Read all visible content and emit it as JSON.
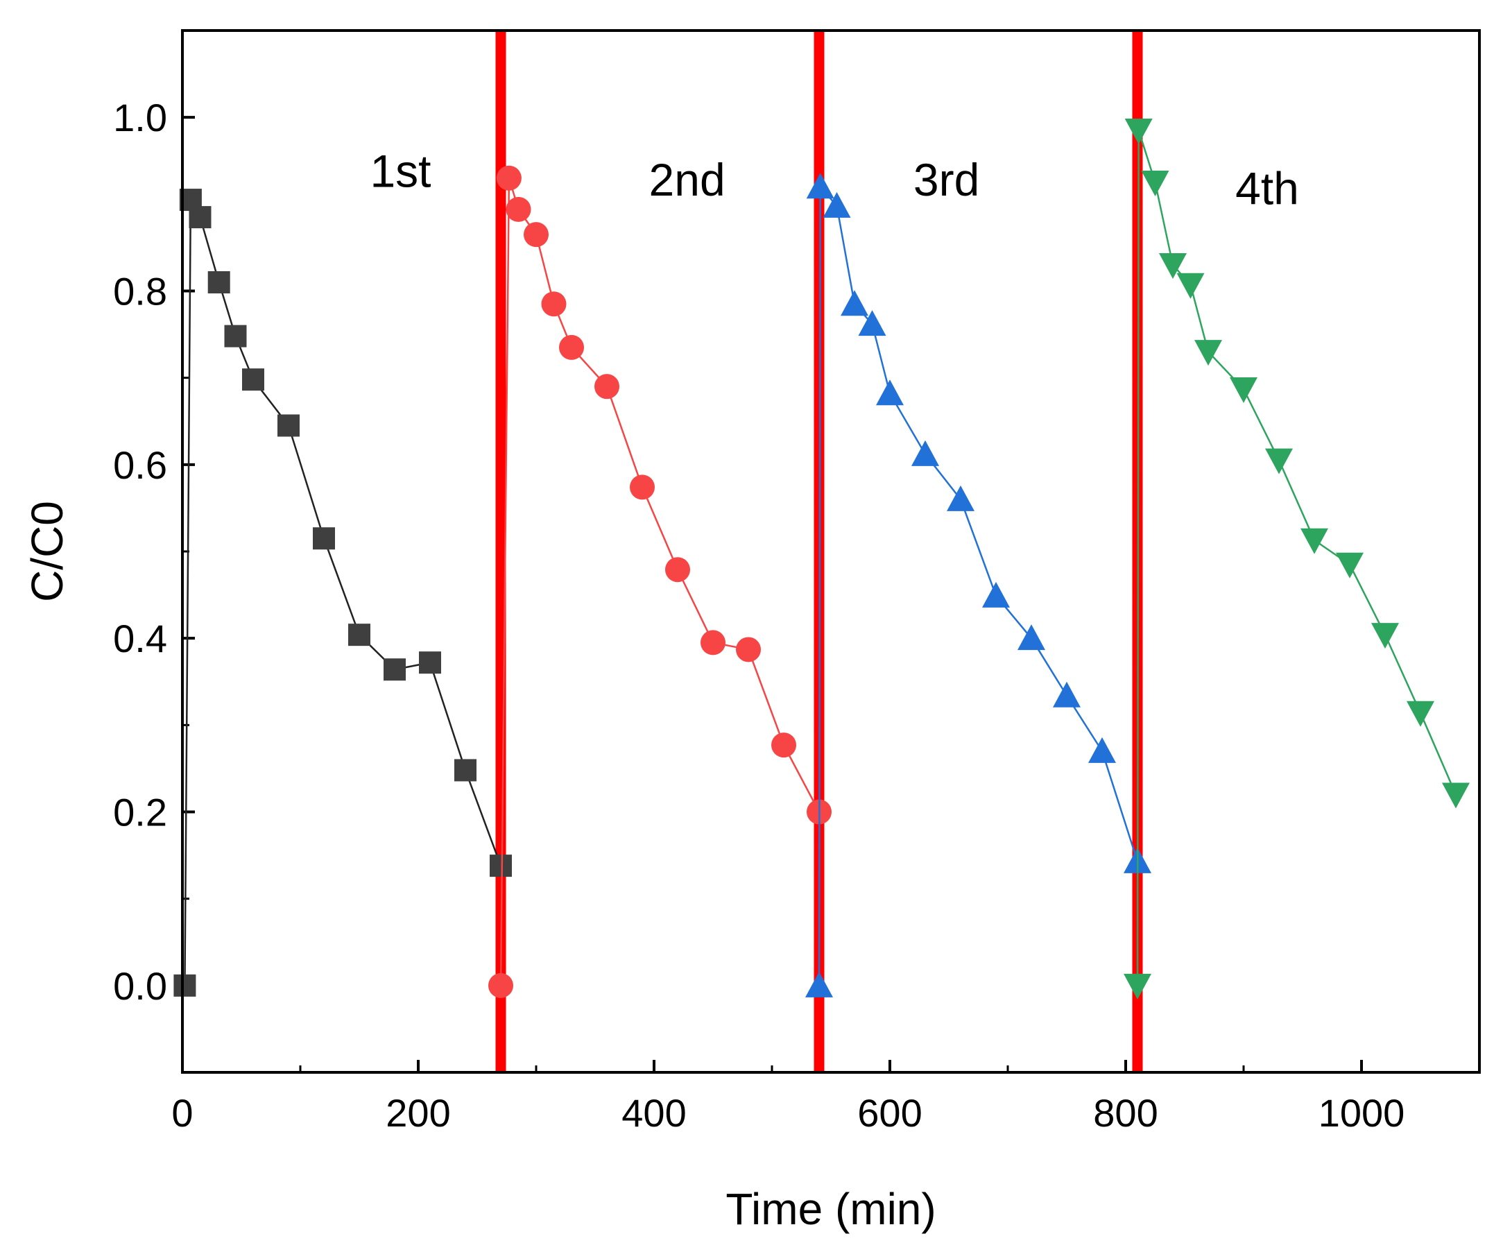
{
  "chart_data": {
    "type": "scatter",
    "xlabel": "Time (min)",
    "ylabel": "C/C0",
    "xlim": [
      0,
      1100
    ],
    "ylim": [
      -0.1,
      1.1
    ],
    "x_ticks": [
      0,
      200,
      400,
      600,
      800,
      1000
    ],
    "x_tick_labels": [
      "0",
      "200",
      "400",
      "600",
      "800",
      "1000"
    ],
    "y_ticks": [
      0.0,
      0.2,
      0.4,
      0.6,
      0.8,
      1.0
    ],
    "y_tick_labels": [
      "0.0",
      "0.2",
      "0.4",
      "0.6",
      "0.8",
      "1.0"
    ],
    "separators_x": [
      270,
      540,
      810
    ],
    "separator_color": "#ff0000",
    "cycle_labels": [
      {
        "text": "1st",
        "x": 185,
        "y": 0.92
      },
      {
        "text": "2nd",
        "x": 428,
        "y": 0.91
      },
      {
        "text": "3rd",
        "x": 648,
        "y": 0.91
      },
      {
        "text": "4th",
        "x": 920,
        "y": 0.9
      }
    ],
    "series": [
      {
        "name": "1st",
        "marker": "square",
        "color": "#3f3f3f",
        "line_color": "#222222",
        "x": [
          2,
          7,
          15,
          31,
          45,
          60,
          90,
          120,
          150,
          180,
          210,
          240,
          270
        ],
        "y": [
          0.0,
          0.905,
          0.885,
          0.81,
          0.748,
          0.698,
          0.645,
          0.515,
          0.404,
          0.364,
          0.372,
          0.248,
          0.138
        ]
      },
      {
        "name": "2nd",
        "marker": "circle",
        "color": "#f74545",
        "line_color": "#f74545",
        "x": [
          270,
          277,
          285,
          300,
          315,
          330,
          360,
          390,
          420,
          450,
          480,
          510,
          540
        ],
        "y": [
          0.0,
          0.93,
          0.894,
          0.865,
          0.785,
          0.735,
          0.69,
          0.574,
          0.479,
          0.395,
          0.387,
          0.277,
          0.2
        ]
      },
      {
        "name": "3rd",
        "marker": "triangle-up",
        "color": "#2171d9",
        "line_color": "#2171d9",
        "x": [
          540,
          541,
          555,
          570,
          585,
          600,
          630,
          660,
          690,
          720,
          750,
          780,
          810
        ],
        "y": [
          0.0,
          0.92,
          0.898,
          0.785,
          0.762,
          0.682,
          0.612,
          0.56,
          0.449,
          0.4,
          0.334,
          0.27,
          0.143
        ]
      },
      {
        "name": "4th",
        "marker": "triangle-down",
        "color": "#2da55e",
        "line_color": "#2da55e",
        "x": [
          810,
          811,
          825,
          840,
          855,
          870,
          900,
          930,
          960,
          990,
          1020,
          1050,
          1080
        ],
        "y": [
          0.0,
          0.985,
          0.925,
          0.83,
          0.807,
          0.73,
          0.687,
          0.605,
          0.513,
          0.485,
          0.404,
          0.314,
          0.22
        ]
      }
    ]
  }
}
